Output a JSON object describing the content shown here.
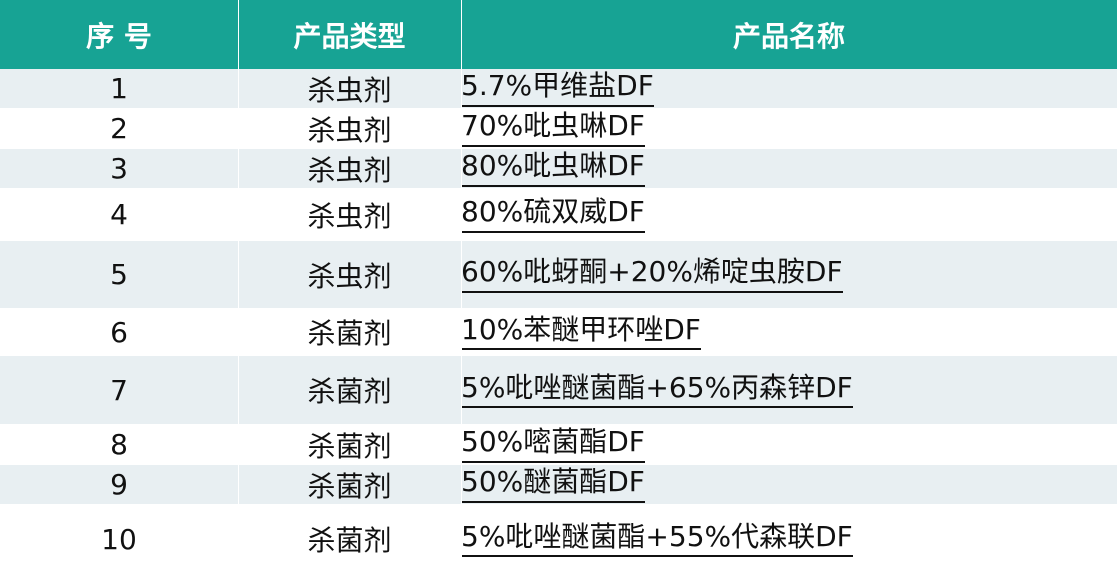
{
  "header": {
    "col_index": "序 号",
    "col_type": "产品类型",
    "col_name": "产品名称"
  },
  "rows": [
    {
      "index": "1",
      "type": "杀虫剂",
      "name": "5.7%甲维盐DF"
    },
    {
      "index": "2",
      "type": "杀虫剂",
      "name": "70%吡虫啉DF"
    },
    {
      "index": "3",
      "type": "杀虫剂",
      "name": "80%吡虫啉DF"
    },
    {
      "index": "4",
      "type": "杀虫剂",
      "name": "80%硫双威DF"
    },
    {
      "index": "5",
      "type": "杀虫剂",
      "name": "60%吡蚜酮+20%烯啶虫胺DF"
    },
    {
      "index": "6",
      "type": "杀菌剂",
      "name": "10%苯醚甲环唑DF"
    },
    {
      "index": "7",
      "type": "杀菌剂",
      "name": "5%吡唑醚菌酯+65%丙森锌DF"
    },
    {
      "index": "8",
      "type": "杀菌剂",
      "name": "50%嘧菌酯DF"
    },
    {
      "index": "9",
      "type": "杀菌剂",
      "name": "50%醚菌酯DF"
    },
    {
      "index": "10",
      "type": "杀菌剂",
      "name": "5%吡唑醚菌酯+55%代森联DF"
    }
  ],
  "colors": {
    "header_bg": "#17A394",
    "header_text": "#ffffff",
    "row_alt": "#E8EFF2",
    "row_plain": "#ffffff",
    "text": "#111111"
  }
}
